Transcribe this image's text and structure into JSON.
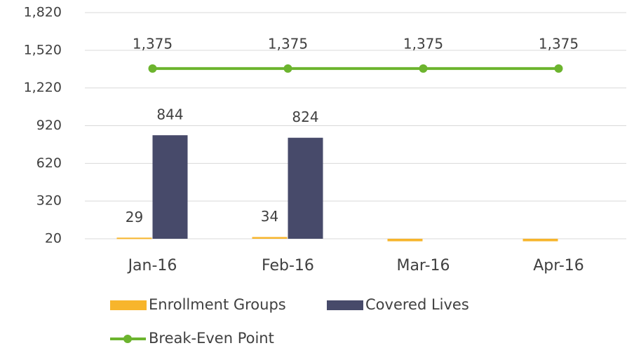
{
  "chart_data": {
    "type": "bar",
    "categories": [
      "Jan-16",
      "Feb-16",
      "Mar-16",
      "Apr-16"
    ],
    "series": [
      {
        "name": "Enrollment Groups",
        "type": "bar",
        "color": "#f7b52c",
        "values": [
          29,
          34,
          0,
          0
        ],
        "value_labels": [
          "29",
          "34",
          null,
          null
        ]
      },
      {
        "name": "Covered Lives",
        "type": "bar",
        "color": "#474a6a",
        "values": [
          844,
          824,
          null,
          null
        ],
        "value_labels": [
          "844",
          "824",
          null,
          null
        ]
      },
      {
        "name": "Break-Even Point",
        "type": "line",
        "color": "#6cb42e",
        "values": [
          1375,
          1375,
          1375,
          1375
        ],
        "value_labels": [
          "1,375",
          "1,375",
          "1,375",
          "1,375"
        ]
      }
    ],
    "ylim": [
      20,
      1820
    ],
    "yticks": [
      20,
      320,
      620,
      920,
      {
        "value": 1220,
        "label": "1,220"
      },
      {
        "value": 1520,
        "label": "1,520"
      },
      {
        "value": 1820,
        "label": "1,820"
      }
    ],
    "grid": true
  }
}
